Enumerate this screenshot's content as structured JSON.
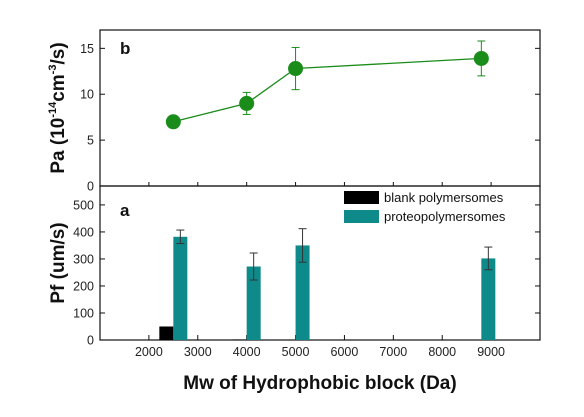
{
  "chart_data": [
    {
      "panel": "b",
      "type": "line",
      "title": "",
      "xlabel": "Mw of Hydrophobic block (Da)",
      "ylabel": "Pa (10^-14 cm^-3/s)",
      "ylabel_parts": {
        "prefix": "Pa (10",
        "exponent": "-14",
        "middle": "cm",
        "exponent2": "-3",
        "suffix": "/s)"
      },
      "xlim": [
        1000,
        10000
      ],
      "ylim": [
        0,
        17
      ],
      "yticks": [
        0,
        5,
        10,
        15
      ],
      "grid": false,
      "color": "#1a8c1a",
      "series": [
        {
          "x": [
            2500,
            4000,
            5000,
            8800
          ],
          "y": [
            7.0,
            9.0,
            12.8,
            13.9
          ],
          "error": [
            0.0,
            1.2,
            2.3,
            1.9
          ]
        }
      ]
    },
    {
      "panel": "a",
      "type": "bar",
      "title": "",
      "xlabel": "Mw of Hydrophobic block (Da)",
      "ylabel": "Pf (um/s)",
      "xlim": [
        1000,
        10000
      ],
      "ylim": [
        0,
        570
      ],
      "yticks": [
        0,
        100,
        200,
        300,
        400,
        500
      ],
      "xticks": [
        2000,
        3000,
        4000,
        5000,
        6000,
        7000,
        8000,
        9000
      ],
      "grid": false,
      "legend_position": "top-right",
      "series": [
        {
          "name": "blank polymersomes",
          "color": "#000000",
          "x": [
            2500,
            4000,
            5000,
            8800
          ],
          "values": [
            50,
            2,
            0,
            0
          ],
          "error": [
            0,
            0,
            0,
            0
          ]
        },
        {
          "name": "proteopolymersomes",
          "color": "#0f8a8a",
          "x": [
            2500,
            4000,
            5000,
            8800
          ],
          "values": [
            382,
            272,
            350,
            302
          ],
          "error": [
            25,
            50,
            62,
            42
          ]
        }
      ]
    }
  ]
}
